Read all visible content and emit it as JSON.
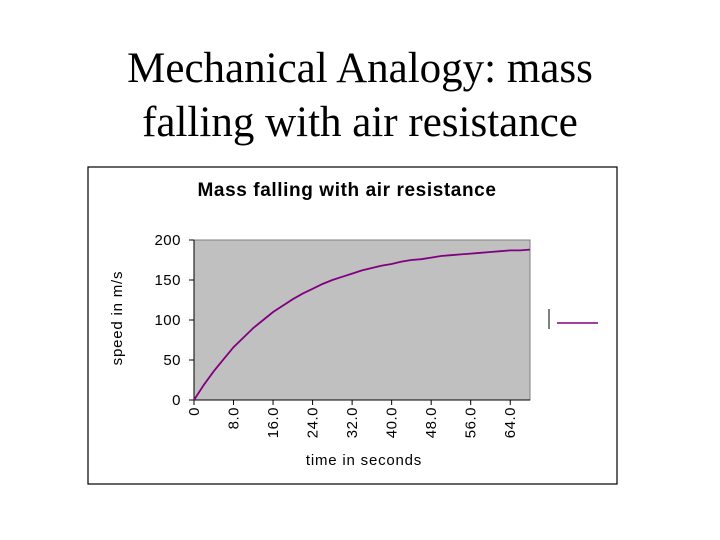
{
  "slide": {
    "title_line1": "Mechanical Analogy:  mass",
    "title_line2": "falling with air resistance"
  },
  "chart_data": {
    "type": "line",
    "title": "Mass falling with air resistance",
    "xlabel": "time in seconds",
    "ylabel": "speed in m/s",
    "x_tick_labels": [
      "0",
      "8.0",
      "16.0",
      "24.0",
      "32.0",
      "40.0",
      "48.0",
      "56.0",
      "64.0"
    ],
    "y_tick_labels": [
      "0",
      "50",
      "100",
      "150",
      "200"
    ],
    "xlim": [
      0,
      68
    ],
    "ylim": [
      0,
      200
    ],
    "grid": false,
    "legend": "right",
    "colors": {
      "plot_area": "#c0c0c0",
      "series": "#800080",
      "frame": "#000000"
    },
    "series": [
      {
        "values": [
          [
            0,
            0
          ],
          [
            2,
            19
          ],
          [
            4,
            36
          ],
          [
            6,
            51
          ],
          [
            8,
            66
          ],
          [
            10,
            78
          ],
          [
            12,
            90
          ],
          [
            14,
            100
          ],
          [
            16,
            110
          ],
          [
            18,
            118
          ],
          [
            20,
            126
          ],
          [
            22,
            133
          ],
          [
            24,
            139
          ],
          [
            26,
            145
          ],
          [
            28,
            150
          ],
          [
            30,
            154
          ],
          [
            32,
            158
          ],
          [
            34,
            162
          ],
          [
            36,
            165
          ],
          [
            38,
            168
          ],
          [
            40,
            170
          ],
          [
            42,
            173
          ],
          [
            44,
            175
          ],
          [
            46,
            176
          ],
          [
            48,
            178
          ],
          [
            50,
            180
          ],
          [
            52,
            181
          ],
          [
            54,
            182
          ],
          [
            56,
            183
          ],
          [
            58,
            184
          ],
          [
            60,
            185
          ],
          [
            62,
            186
          ],
          [
            64,
            187
          ],
          [
            66,
            187
          ],
          [
            68,
            188
          ]
        ]
      }
    ]
  }
}
